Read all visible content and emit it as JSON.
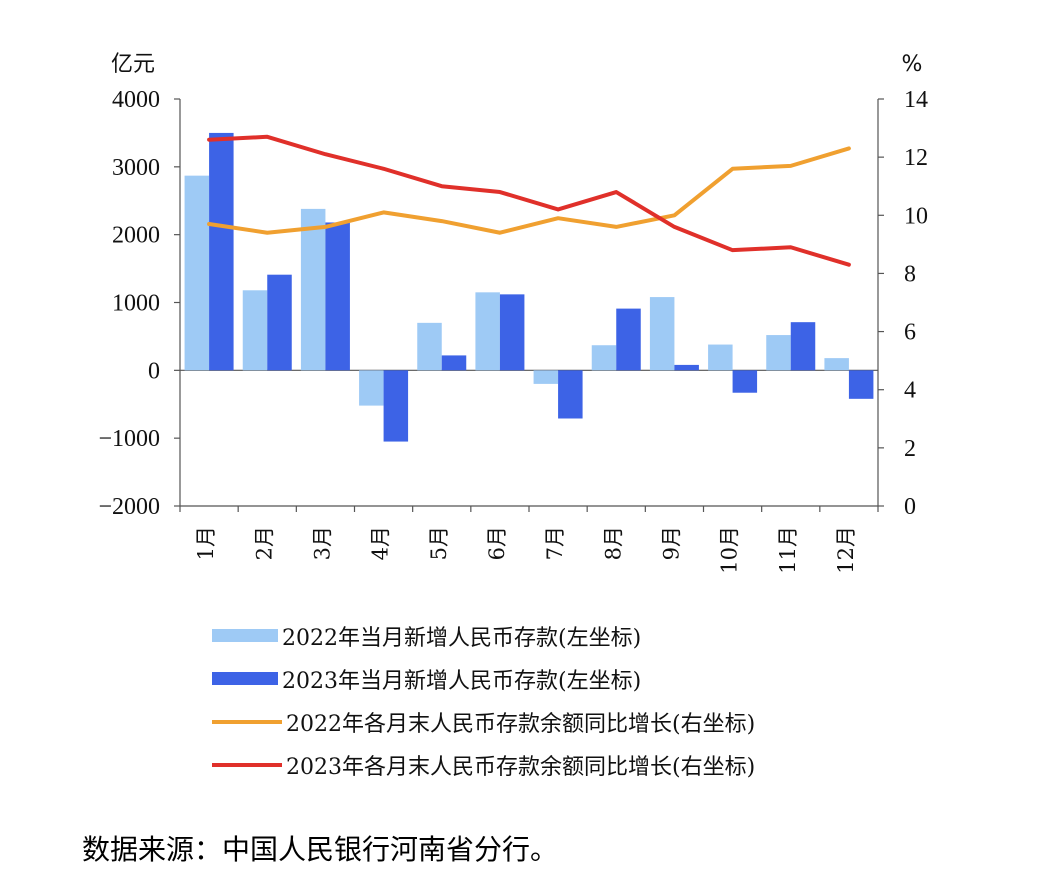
{
  "chart_data": {
    "type": "bar+line",
    "categories": [
      "1月",
      "2月",
      "3月",
      "4月",
      "5月",
      "6月",
      "7月",
      "8月",
      "9月",
      "10月",
      "11月",
      "12月"
    ],
    "left_axis": {
      "unit": "亿元",
      "ylim": [
        -2000,
        4000
      ],
      "ticks": [
        "4000",
        "3000",
        "2000",
        "1000",
        "0",
        "−1000",
        "−2000"
      ],
      "tick_values": [
        4000,
        3000,
        2000,
        1000,
        0,
        -1000,
        -2000
      ]
    },
    "right_axis": {
      "unit": "%",
      "ylim": [
        0,
        14
      ],
      "ticks": [
        "14",
        "12",
        "10",
        "8",
        "6",
        "4",
        "2",
        "0"
      ],
      "tick_values": [
        14,
        12,
        10,
        8,
        6,
        4,
        2,
        0
      ]
    },
    "series": [
      {
        "name": "2022年当月新增人民币存款(左坐标)",
        "type": "bar",
        "axis": "left",
        "color": "#9ecaf5",
        "values": [
          2870,
          1180,
          2380,
          -520,
          700,
          1150,
          -200,
          370,
          1080,
          380,
          520,
          180
        ]
      },
      {
        "name": "2023年当月新增人民币存款(左坐标)",
        "type": "bar",
        "axis": "left",
        "color": "#3d63e6",
        "values": [
          3500,
          1410,
          2180,
          -1050,
          220,
          1120,
          -710,
          910,
          80,
          -330,
          710,
          -420
        ]
      },
      {
        "name": "2022年各月末人民币存款余额同比增长(右坐标)",
        "type": "line",
        "axis": "right",
        "color": "#f0a030",
        "values": [
          9.7,
          9.4,
          9.6,
          10.1,
          9.8,
          9.4,
          9.9,
          9.6,
          10.0,
          11.6,
          11.7,
          12.3
        ]
      },
      {
        "name": "2023年各月末人民币存款余额同比增长(右坐标)",
        "type": "line",
        "axis": "right",
        "color": "#e0302a",
        "values": [
          12.6,
          12.7,
          12.1,
          11.6,
          11.0,
          10.8,
          10.2,
          10.8,
          9.6,
          8.8,
          8.9,
          8.3
        ]
      }
    ],
    "grid": false,
    "legend_position": "bottom"
  },
  "source_text": "数据来源：中国人民银行河南省分行。"
}
